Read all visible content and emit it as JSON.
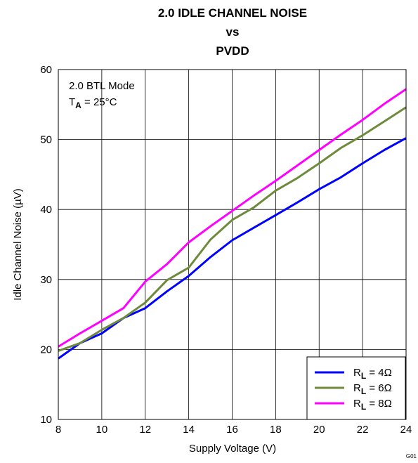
{
  "chart_data": {
    "type": "line",
    "title_lines": [
      "2.0 IDLE CHANNEL NOISE",
      "vs",
      "PVDD"
    ],
    "xlabel": "Supply Voltage (V)",
    "ylabel": "Idle Channel Noise (µV)",
    "xlim": [
      8,
      24
    ],
    "ylim": [
      10,
      60
    ],
    "xticks": [
      8,
      10,
      12,
      14,
      16,
      18,
      20,
      22,
      24
    ],
    "yticks": [
      10,
      20,
      30,
      40,
      50,
      60
    ],
    "grid": true,
    "annotations": {
      "mode": "2.0 BTL Mode",
      "temp_main": "T",
      "temp_sub": "A",
      "temp_rest": " = 25°C"
    },
    "legend_position": "bottom-right",
    "figure_id": "G01",
    "x": [
      8,
      9,
      10,
      11,
      12,
      13,
      14,
      15,
      16,
      17,
      18,
      19,
      20,
      21,
      22,
      23,
      24
    ],
    "series": [
      {
        "legend_main": "R",
        "legend_sub": "L",
        "legend_rest": " = 4Ω",
        "color": "#0000ff",
        "values": [
          18.7,
          20.9,
          22.3,
          24.5,
          25.9,
          28.3,
          30.5,
          33.2,
          35.6,
          37.4,
          39.2,
          41.0,
          42.9,
          44.6,
          46.6,
          48.5,
          50.2
        ]
      },
      {
        "legend_main": "R",
        "legend_sub": "L",
        "legend_rest": " = 6Ω",
        "color": "#6e8a3c",
        "values": [
          19.8,
          20.9,
          22.8,
          24.5,
          26.7,
          29.9,
          31.7,
          35.7,
          38.5,
          40.3,
          42.7,
          44.5,
          46.6,
          48.8,
          50.6,
          52.6,
          54.6
        ]
      },
      {
        "legend_main": "R",
        "legend_sub": "L",
        "legend_rest": " = 8Ω",
        "color": "#ff00ff",
        "values": [
          20.4,
          22.3,
          24.1,
          25.9,
          29.7,
          32.2,
          35.3,
          37.6,
          39.8,
          42.0,
          44.1,
          46.3,
          48.5,
          50.7,
          52.8,
          55.1,
          57.2
        ]
      }
    ]
  }
}
